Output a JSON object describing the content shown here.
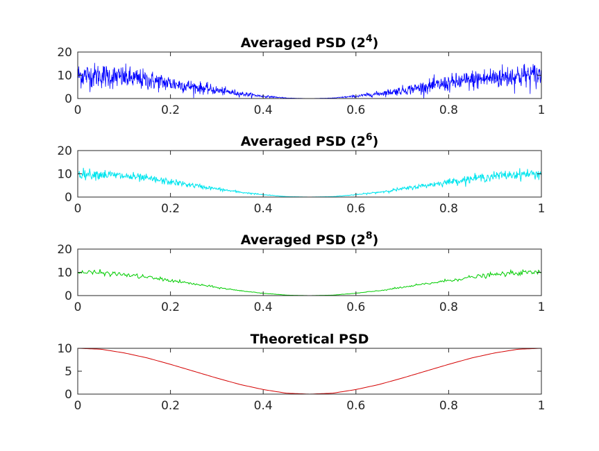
{
  "chart_data": [
    {
      "type": "line",
      "title": "Averaged PSD (2",
      "title_sup": "4",
      "title_end": ")",
      "xlim": [
        0,
        1
      ],
      "ylim": [
        0,
        20
      ],
      "xticks": [
        0,
        0.2,
        0.4,
        0.6,
        0.8,
        1
      ],
      "xtick_labels": [
        "0",
        "0.2",
        "0.4",
        "0.6",
        "0.8",
        "1"
      ],
      "yticks": [
        0,
        10,
        20
      ],
      "ytick_labels": [
        "0",
        "10",
        "20"
      ],
      "grid": false,
      "color": "#0000ff",
      "series": [
        {
          "shape": "5*(1+cos(2*pi*x))",
          "x": [
            0,
            0.05,
            0.1,
            0.15,
            0.2,
            0.25,
            0.3,
            0.35,
            0.4,
            0.45,
            0.5,
            0.55,
            0.6,
            0.65,
            0.7,
            0.75,
            0.8,
            0.85,
            0.9,
            0.95,
            1
          ],
          "y": [
            10.0,
            9.8,
            9.0,
            7.9,
            6.5,
            5.0,
            3.5,
            2.1,
            1.0,
            0.2,
            0.0,
            0.2,
            1.0,
            2.1,
            3.5,
            5.0,
            6.5,
            7.9,
            9.0,
            9.8,
            10.0
          ],
          "noise_ratio": 0.5,
          "points": 1400
        }
      ]
    },
    {
      "type": "line",
      "title": "Averaged PSD (2",
      "title_sup": "6",
      "title_end": ")",
      "xlim": [
        0,
        1
      ],
      "ylim": [
        0,
        20
      ],
      "xticks": [
        0,
        0.2,
        0.4,
        0.6,
        0.8,
        1
      ],
      "xtick_labels": [
        "0",
        "0.2",
        "0.4",
        "0.6",
        "0.8",
        "1"
      ],
      "yticks": [
        0,
        10,
        20
      ],
      "ytick_labels": [
        "0",
        "10",
        "20"
      ],
      "grid": false,
      "color": "#00e5ee",
      "series": [
        {
          "shape": "5*(1+cos(2*pi*x))",
          "x": [
            0,
            0.05,
            0.1,
            0.15,
            0.2,
            0.25,
            0.3,
            0.35,
            0.4,
            0.45,
            0.5,
            0.55,
            0.6,
            0.65,
            0.7,
            0.75,
            0.8,
            0.85,
            0.9,
            0.95,
            1
          ],
          "y": [
            10.0,
            9.8,
            9.0,
            7.9,
            6.5,
            5.0,
            3.5,
            2.1,
            1.0,
            0.2,
            0.0,
            0.2,
            1.0,
            2.1,
            3.5,
            5.0,
            6.5,
            7.9,
            9.0,
            9.8,
            10.0
          ],
          "noise_ratio": 0.2,
          "points": 900
        }
      ]
    },
    {
      "type": "line",
      "title": "Averaged PSD (2",
      "title_sup": "8",
      "title_end": ")",
      "xlim": [
        0,
        1
      ],
      "ylim": [
        0,
        20
      ],
      "xticks": [
        0,
        0.2,
        0.4,
        0.6,
        0.8,
        1
      ],
      "xtick_labels": [
        "0",
        "0.2",
        "0.4",
        "0.6",
        "0.8",
        "1"
      ],
      "yticks": [
        0,
        10,
        20
      ],
      "ytick_labels": [
        "0",
        "10",
        "20"
      ],
      "grid": false,
      "color": "#00cc00",
      "series": [
        {
          "shape": "5*(1+cos(2*pi*x))",
          "x": [
            0,
            0.05,
            0.1,
            0.15,
            0.2,
            0.25,
            0.3,
            0.35,
            0.4,
            0.45,
            0.5,
            0.55,
            0.6,
            0.65,
            0.7,
            0.75,
            0.8,
            0.85,
            0.9,
            0.95,
            1
          ],
          "y": [
            10.0,
            9.8,
            9.0,
            7.9,
            6.5,
            5.0,
            3.5,
            2.1,
            1.0,
            0.2,
            0.0,
            0.2,
            1.0,
            2.1,
            3.5,
            5.0,
            6.5,
            7.9,
            9.0,
            9.8,
            10.0
          ],
          "noise_ratio": 0.1,
          "points": 500
        }
      ]
    },
    {
      "type": "line",
      "title": "Theoretical PSD",
      "title_sup": "",
      "title_end": "",
      "xlim": [
        0,
        1
      ],
      "ylim": [
        0,
        10
      ],
      "xticks": [
        0,
        0.2,
        0.4,
        0.6,
        0.8,
        1
      ],
      "xtick_labels": [
        "0",
        "0.2",
        "0.4",
        "0.6",
        "0.8",
        "1"
      ],
      "yticks": [
        0,
        5,
        10
      ],
      "ytick_labels": [
        "0",
        "5",
        "10"
      ],
      "grid": false,
      "color": "#d40000",
      "series": [
        {
          "shape": "5*(1+cos(2*pi*x))",
          "x": [
            0,
            0.05,
            0.1,
            0.15,
            0.2,
            0.25,
            0.3,
            0.35,
            0.4,
            0.45,
            0.5,
            0.55,
            0.6,
            0.65,
            0.7,
            0.75,
            0.8,
            0.85,
            0.9,
            0.95,
            1
          ],
          "y": [
            10.0,
            9.8,
            9.0,
            7.9,
            6.5,
            5.0,
            3.5,
            2.1,
            1.0,
            0.2,
            0.0,
            0.2,
            1.0,
            2.1,
            3.5,
            5.0,
            6.5,
            7.9,
            9.0,
            9.8,
            10.0
          ],
          "noise_ratio": 0,
          "points": 300
        }
      ]
    }
  ]
}
